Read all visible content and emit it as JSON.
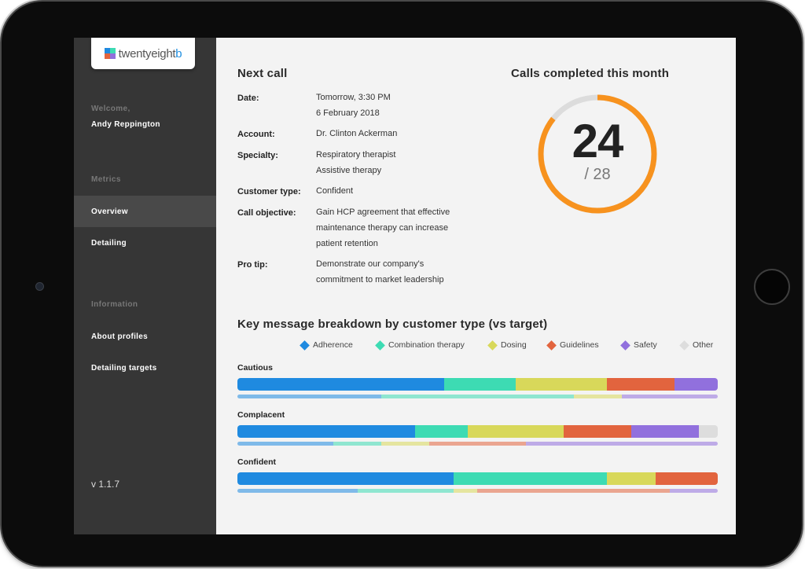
{
  "brand": {
    "logo_prefix": "twentyeight",
    "logo_suffix": "b"
  },
  "sidebar": {
    "welcome_label": "Welcome,",
    "user_name": "Andy Reppington",
    "metrics_heading": "Metrics",
    "metrics_items": [
      {
        "label": "Overview",
        "active": true
      },
      {
        "label": "Detailing",
        "active": false
      }
    ],
    "information_heading": "Information",
    "information_items": [
      {
        "label": "About profiles"
      },
      {
        "label": "Detailing targets"
      }
    ],
    "version": "v 1.1.7"
  },
  "next_call": {
    "title": "Next call",
    "fields": [
      {
        "label": "Date:",
        "lines": [
          "Tomorrow, 3:30 PM",
          "6 February 2018"
        ]
      },
      {
        "label": "Account:",
        "lines": [
          "Dr. Clinton Ackerman"
        ]
      },
      {
        "label": "Specialty:",
        "lines": [
          "Respiratory therapist",
          "Assistive therapy"
        ]
      },
      {
        "label": "Customer type:",
        "lines": [
          "Confident"
        ]
      },
      {
        "label": "Call objective:",
        "lines": [
          "Gain HCP agreement that effective",
          "maintenance therapy can increase",
          "patient retention"
        ]
      },
      {
        "label": "Pro tip:",
        "lines": [
          "Demonstrate our company's",
          "commitment to market leadership"
        ]
      }
    ]
  },
  "calls": {
    "title": "Calls completed this month",
    "completed": "24",
    "total_label": "/ 28",
    "completed_value": 24,
    "total_value": 28,
    "color": "#f7921e",
    "track_color": "#dcdcdc"
  },
  "breakdown": {
    "title": "Key message breakdown by customer type (vs target)",
    "legend": [
      {
        "name": "Adherence",
        "color": "#1f8ae0"
      },
      {
        "name": "Combination therapy",
        "color": "#3ddbb3"
      },
      {
        "name": "Dosing",
        "color": "#d8d85a"
      },
      {
        "name": "Guidelines",
        "color": "#e2643e"
      },
      {
        "name": "Safety",
        "color": "#9170dd"
      },
      {
        "name": "Other",
        "color": "#dddddd"
      }
    ],
    "rows": [
      {
        "label": "Cautious",
        "actual": [
          43,
          15,
          19,
          14,
          9,
          0
        ],
        "target": [
          30,
          40,
          10,
          0,
          20,
          0
        ]
      },
      {
        "label": "Complacent",
        "actual": [
          37,
          11,
          20,
          14,
          14,
          4
        ],
        "target": [
          20,
          10,
          10,
          20,
          40,
          0
        ]
      },
      {
        "label": "Confident",
        "actual": [
          45,
          32,
          10,
          13,
          0,
          0
        ],
        "target": [
          25,
          20,
          5,
          40,
          10,
          0
        ]
      }
    ]
  }
}
